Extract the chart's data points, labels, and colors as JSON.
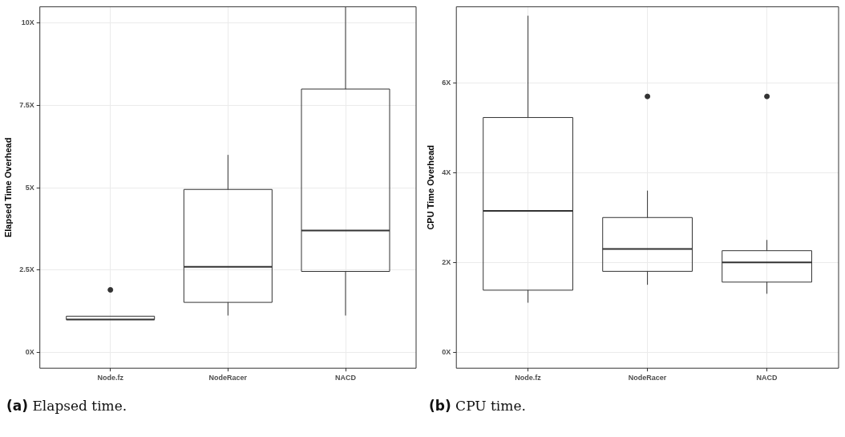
{
  "chart_data": [
    {
      "type": "box",
      "ylabel": "Elapsed Time Overhead",
      "categories": [
        "Node.fz",
        "NodeRacer",
        "NACD"
      ],
      "boxes": [
        {
          "low": 1.0,
          "q1": 1.0,
          "median": 1.0,
          "q3": 1.1,
          "high": 1.1,
          "outliers": [
            1.9
          ]
        },
        {
          "low": 1.12,
          "q1": 1.52,
          "median": 2.6,
          "q3": 4.95,
          "high": 6.0
        },
        {
          "low": 1.12,
          "q1": 2.46,
          "median": 3.7,
          "q3": 8.0,
          "high": 10.5
        }
      ],
      "color": "#333333",
      "ylim": [
        -0.48,
        10.5
      ],
      "yticks": [
        {
          "value": 0,
          "label": "0X"
        },
        {
          "value": 2.5,
          "label": "2.5X"
        },
        {
          "value": 5,
          "label": "5X"
        },
        {
          "value": 7.5,
          "label": "7.5X"
        },
        {
          "value": 10,
          "label": "10X"
        }
      ],
      "grid": true,
      "annotations": [
        "(a) Elapsed time."
      ]
    },
    {
      "type": "box",
      "ylabel": "CPU Time Overhead",
      "categories": [
        "Node.fz",
        "NodeRacer",
        "NACD"
      ],
      "boxes": [
        {
          "low": 1.1,
          "q1": 1.38,
          "median": 3.15,
          "q3": 5.23,
          "high": 7.5
        },
        {
          "low": 1.5,
          "q1": 1.8,
          "median": 2.3,
          "q3": 3.0,
          "high": 3.6,
          "outliers": [
            5.7
          ]
        },
        {
          "low": 1.3,
          "q1": 1.56,
          "median": 2.0,
          "q3": 2.26,
          "high": 2.5,
          "outliers": [
            5.7
          ]
        }
      ],
      "color": "#333333",
      "ylim": [
        -0.36,
        7.7
      ],
      "yticks": [
        {
          "value": 0,
          "label": "0X"
        },
        {
          "value": 2,
          "label": "2X"
        },
        {
          "value": 4,
          "label": "4X"
        },
        {
          "value": 6,
          "label": "6X"
        }
      ],
      "grid": true,
      "annotations": [
        "(b) CPU time."
      ]
    }
  ]
}
